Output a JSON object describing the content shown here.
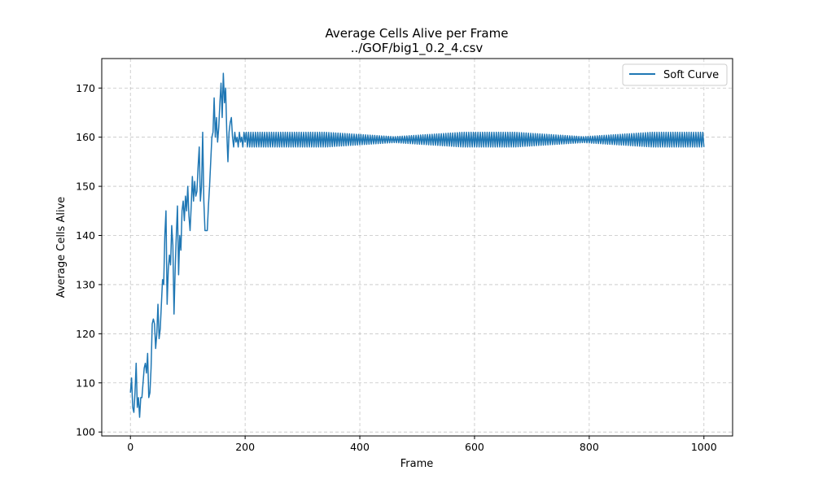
{
  "chart_data": {
    "type": "line",
    "title": "Average Cells Alive per Frame",
    "subtitle": "../GOF/big1_0.2_4.csv",
    "xlabel": "Frame",
    "ylabel": "Average Cells Alive",
    "xlim": [
      -50,
      1050
    ],
    "ylim": [
      99.2,
      176
    ],
    "xticks": [
      0,
      200,
      400,
      600,
      800,
      1000
    ],
    "yticks": [
      100,
      110,
      120,
      130,
      140,
      150,
      160,
      170
    ],
    "grid": true,
    "legend_position": "top-right",
    "colors": {
      "series": "#1f77b4"
    },
    "series": [
      {
        "name": "Soft Curve",
        "x": [
          0,
          2,
          4,
          6,
          8,
          10,
          12,
          14,
          16,
          18,
          20,
          22,
          24,
          26,
          28,
          30,
          32,
          34,
          36,
          38,
          40,
          42,
          44,
          46,
          48,
          50,
          52,
          54,
          56,
          58,
          60,
          62,
          64,
          66,
          68,
          70,
          72,
          74,
          76,
          78,
          80,
          82,
          84,
          86,
          88,
          90,
          92,
          94,
          96,
          98,
          100,
          102,
          104,
          106,
          108,
          110,
          112,
          114,
          116,
          118,
          120,
          122,
          124,
          126,
          128,
          130,
          132,
          134,
          136,
          138,
          140,
          142,
          144,
          146,
          148,
          150,
          152,
          154,
          156,
          158,
          160,
          162,
          164,
          166,
          168,
          170,
          172,
          174,
          176,
          178,
          180,
          182,
          184,
          186,
          188,
          190,
          192,
          194,
          196,
          198,
          200
        ],
        "y": [
          108,
          111,
          105,
          104,
          108,
          114,
          105,
          107,
          103,
          107,
          107,
          110,
          113,
          114,
          112,
          116,
          107,
          108,
          113,
          122,
          123,
          122,
          117,
          120,
          126,
          119,
          121,
          126,
          131,
          130,
          140,
          145,
          126,
          133,
          136,
          134,
          142,
          138,
          124,
          133,
          140,
          146,
          132,
          140,
          137,
          145,
          147,
          143,
          148,
          145,
          150,
          144,
          141,
          146,
          152,
          147,
          151,
          148,
          149,
          154,
          158,
          147,
          150,
          161,
          147,
          141,
          141,
          141,
          146,
          150,
          155,
          160,
          161,
          168,
          160,
          164,
          159,
          162,
          167,
          171,
          164,
          173,
          167,
          170,
          161,
          155,
          161,
          163,
          164,
          160,
          158,
          161,
          159,
          160,
          158,
          161,
          159,
          160,
          158,
          161,
          159
        ]
      }
    ],
    "oscillation": {
      "x_start": 200,
      "x_end": 1000,
      "step": 4,
      "center": 159.5,
      "amplitude_max": 1.5,
      "amplitude_min": 0.6,
      "amplitude_minima_at": [
        460,
        790
      ]
    }
  }
}
